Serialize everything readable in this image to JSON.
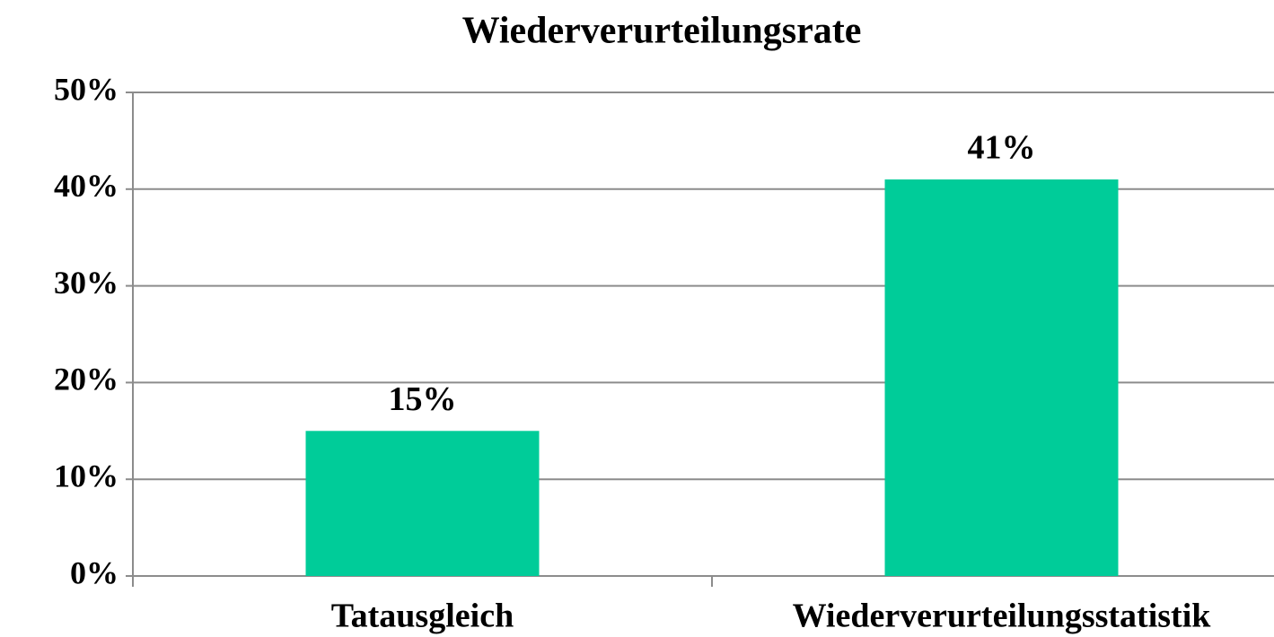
{
  "chart_data": {
    "type": "bar",
    "title": "Wiederverurteilungsrate",
    "categories": [
      "Tatausgleich",
      "Wiederverurteilungsstatistik"
    ],
    "values": [
      15,
      41
    ],
    "value_labels": [
      "15%",
      "41%"
    ],
    "color": "#00cc99",
    "ylim": [
      0,
      50
    ],
    "yticks": [
      {
        "value": 0,
        "label": "0%"
      },
      {
        "value": 10,
        "label": "10%"
      },
      {
        "value": 20,
        "label": "20%"
      },
      {
        "value": 30,
        "label": "30%"
      },
      {
        "value": 40,
        "label": "40%"
      },
      {
        "value": 50,
        "label": "50%"
      }
    ],
    "grid": true
  }
}
